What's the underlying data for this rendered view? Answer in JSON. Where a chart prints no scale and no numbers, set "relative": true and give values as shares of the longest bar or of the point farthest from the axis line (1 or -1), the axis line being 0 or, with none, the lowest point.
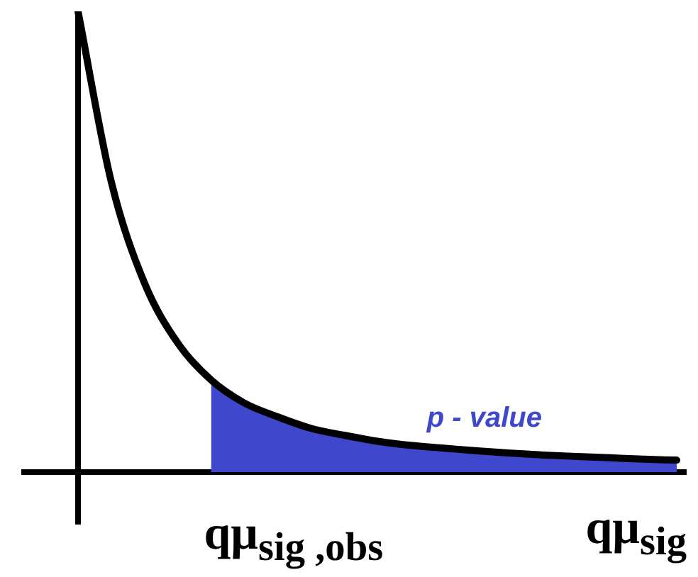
{
  "chart_data": {
    "type": "line",
    "relative": true,
    "xlabel": "qμ$_{sig}$",
    "categories": [
      null,
      null,
      null,
      null,
      null,
      null,
      null,
      null,
      null,
      null,
      null,
      null,
      null,
      null,
      null,
      null,
      null,
      null,
      null
    ],
    "series": [
      {
        "type": "area",
        "color": "#3f48cc",
        "values": [
          null,
          null,
          null,
          null,
          0.2,
          0.15,
          0.12,
          0.095,
          0.08,
          0.067,
          0.058,
          0.052,
          0.046,
          0.041,
          0.037,
          0.034,
          0.031,
          0.028,
          0.026
        ]
      },
      {
        "color": "#000000",
        "values": [
          1.0,
          0.63,
          0.41,
          0.28,
          0.2,
          0.15,
          0.12,
          0.095,
          0.08,
          0.067,
          0.058,
          0.052,
          0.046,
          0.041,
          0.037,
          0.034,
          0.031,
          0.028,
          0.026
        ]
      }
    ],
    "annotations": [
      "qμ$_{sig ,obs}$",
      "p - value"
    ],
    "marker": "none",
    "legend": false
  }
}
